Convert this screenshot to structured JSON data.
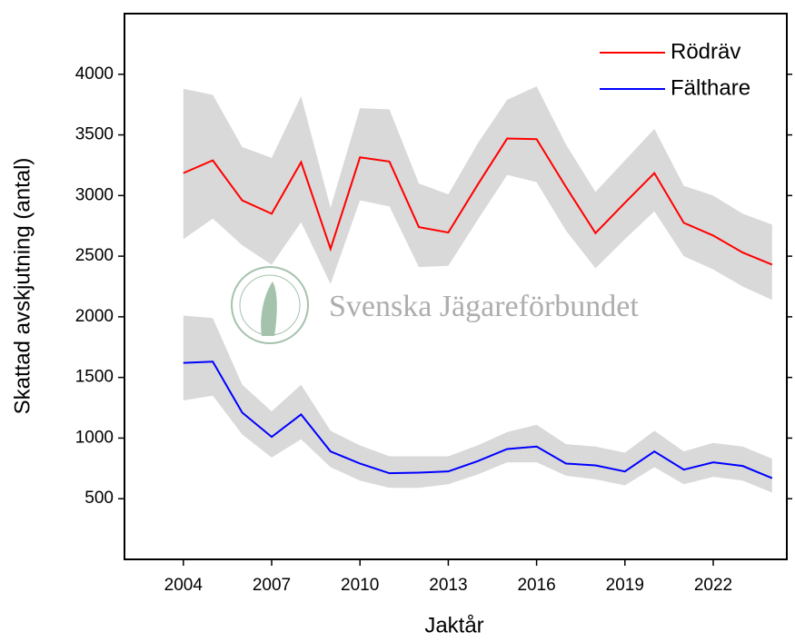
{
  "chart_data": {
    "type": "line",
    "xlabel": "Jaktår",
    "ylabel": "Skattad avskjutning (antal)",
    "x": [
      2004,
      2005,
      2006,
      2007,
      2008,
      2009,
      2010,
      2011,
      2012,
      2013,
      2014,
      2015,
      2016,
      2017,
      2018,
      2019,
      2020,
      2021,
      2022,
      2023,
      2024
    ],
    "series": [
      {
        "name": "Rödräv",
        "color": "#ff0000",
        "band_color": "#d9d9d9",
        "values": [
          3185,
          3290,
          2960,
          2850,
          3275,
          2560,
          3315,
          3280,
          2740,
          2695,
          3090,
          3470,
          3465,
          3070,
          2690,
          2940,
          3185,
          2775,
          2670,
          2530,
          2430
        ],
        "upper": [
          3880,
          3830,
          3400,
          3310,
          3820,
          2900,
          3720,
          3710,
          3100,
          3010,
          3430,
          3790,
          3900,
          3420,
          3030,
          3290,
          3550,
          3080,
          3000,
          2850,
          2760
        ],
        "lower": [
          2640,
          2810,
          2590,
          2430,
          2780,
          2270,
          2960,
          2910,
          2410,
          2420,
          2800,
          3170,
          3110,
          2710,
          2400,
          2640,
          2870,
          2500,
          2390,
          2250,
          2140
        ]
      },
      {
        "name": "Fälthare",
        "color": "#0000ff",
        "band_color": "#d9d9d9",
        "values": [
          1620,
          1630,
          1210,
          1010,
          1195,
          890,
          790,
          710,
          715,
          725,
          810,
          910,
          930,
          790,
          775,
          725,
          890,
          740,
          800,
          770,
          670
        ],
        "upper": [
          2010,
          1990,
          1440,
          1220,
          1440,
          1060,
          940,
          850,
          850,
          850,
          940,
          1050,
          1110,
          950,
          930,
          880,
          1060,
          890,
          960,
          930,
          830
        ],
        "lower": [
          1310,
          1350,
          1030,
          840,
          990,
          760,
          650,
          590,
          590,
          620,
          700,
          800,
          800,
          690,
          660,
          610,
          760,
          620,
          680,
          650,
          550
        ]
      }
    ],
    "xlim": [
      2002,
      2024.5
    ],
    "xticks": [
      2004,
      2007,
      2010,
      2013,
      2016,
      2019,
      2022
    ],
    "ylim": [
      0,
      4500
    ],
    "yticks": [
      500,
      1000,
      1500,
      2000,
      2500,
      3000,
      3500,
      4000
    ],
    "legend": "upper right",
    "watermark": "Svenska Jägareförbundet"
  }
}
